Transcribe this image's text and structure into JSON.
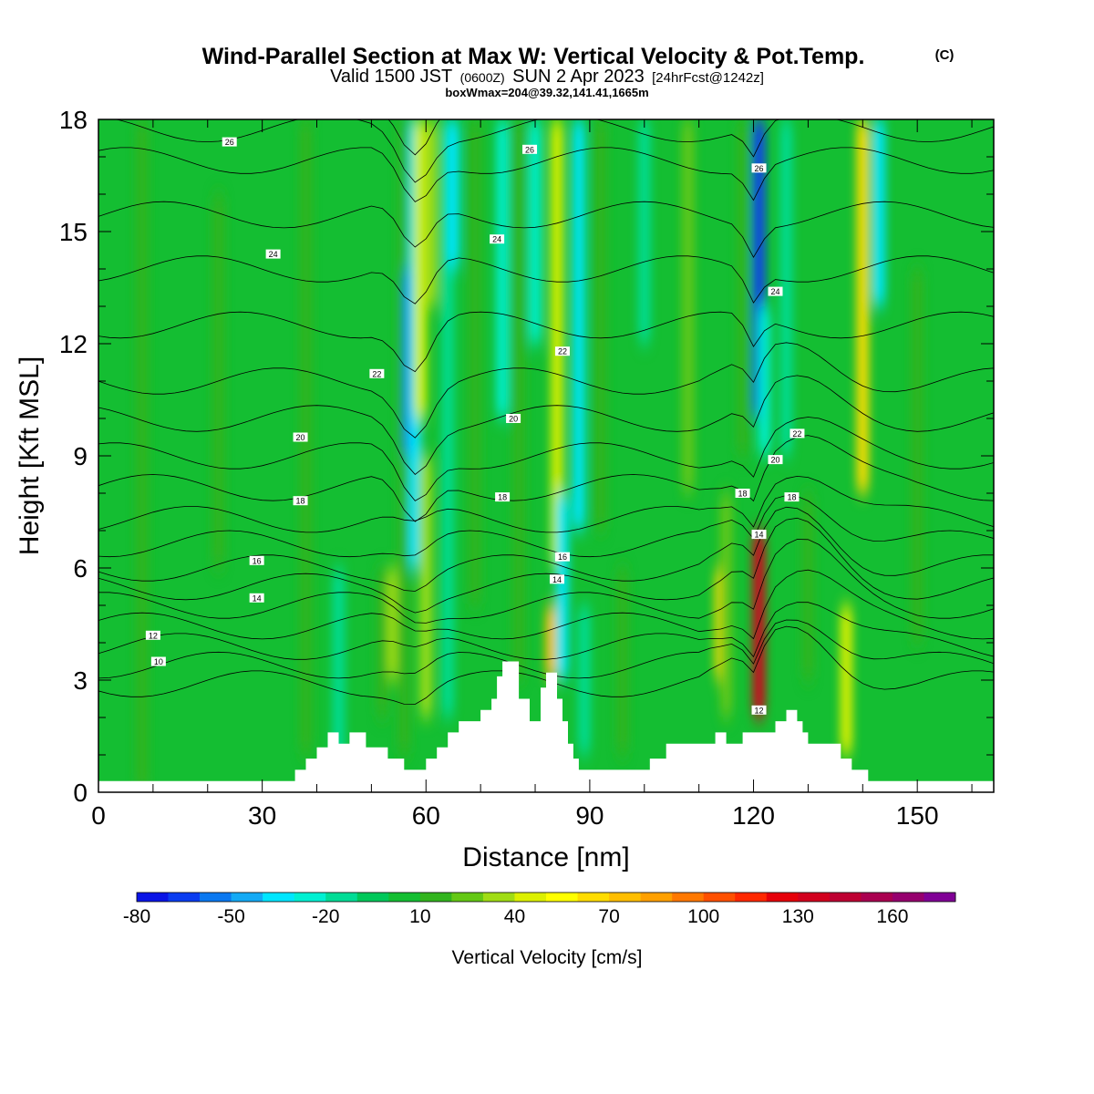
{
  "header": {
    "title": "Wind-Parallel Section at Max W: Vertical Velocity & Pot.Temp.",
    "copyright": "(C)",
    "valid_prefix": "Valid 1500 JST",
    "valid_utc": "(0600Z)",
    "valid_date": "SUN 2 Apr 2023",
    "forecast": "[24hrFcst@1242z]",
    "boxwmax": "boxWmax=204@39.32,141.41,1665m"
  },
  "chart_data": {
    "type": "heatmap",
    "xlabel": "Distance [nm]",
    "ylabel": "Height [Kft MSL]",
    "xlim": [
      0,
      164
    ],
    "ylim": [
      0,
      18
    ],
    "x_ticks": [
      0,
      30,
      60,
      90,
      120,
      150
    ],
    "x_tick_labels": [
      "0",
      "30",
      "60",
      "90",
      "120",
      "150"
    ],
    "y_ticks": [
      0,
      3,
      6,
      9,
      12,
      15,
      18
    ],
    "y_tick_labels": [
      "0",
      "3",
      "6",
      "9",
      "12",
      "15",
      "18"
    ],
    "background_value": 0,
    "bands": [
      {
        "x": 8,
        "y0": 0,
        "y1": 18,
        "value": 10
      },
      {
        "x": 22,
        "y0": 6,
        "y1": 16,
        "value": 10
      },
      {
        "x": 38,
        "y0": 1,
        "y1": 18,
        "value": 10
      },
      {
        "x": 44,
        "y0": 0,
        "y1": 6,
        "value": -15
      },
      {
        "x": 52,
        "y0": 2,
        "y1": 6,
        "value": 10
      },
      {
        "x": 54,
        "y0": 3,
        "y1": 6,
        "value": 35
      },
      {
        "x": 56,
        "y0": 1,
        "y1": 18,
        "value": 10
      },
      {
        "x": 57,
        "y0": 9,
        "y1": 14,
        "value": -60
      },
      {
        "x": 58,
        "y0": 6,
        "y1": 18,
        "value": -40
      },
      {
        "x": 59,
        "y0": 10,
        "y1": 18,
        "value": 40
      },
      {
        "x": 60,
        "y0": 2,
        "y1": 9,
        "value": 30
      },
      {
        "x": 61,
        "y0": 13,
        "y1": 18,
        "value": 30
      },
      {
        "x": 64,
        "y0": 2,
        "y1": 18,
        "value": -20
      },
      {
        "x": 65,
        "y0": 14,
        "y1": 18,
        "value": -40
      },
      {
        "x": 69,
        "y0": 5,
        "y1": 18,
        "value": 10
      },
      {
        "x": 74,
        "y0": 10,
        "y1": 18,
        "value": -30
      },
      {
        "x": 77,
        "y0": 3,
        "y1": 18,
        "value": 10
      },
      {
        "x": 80,
        "y0": 12,
        "y1": 18,
        "value": -30
      },
      {
        "x": 83,
        "y0": 3,
        "y1": 5,
        "value": 70
      },
      {
        "x": 84,
        "y0": 6,
        "y1": 18,
        "value": 40
      },
      {
        "x": 85,
        "y0": 3,
        "y1": 8,
        "value": -35
      },
      {
        "x": 88,
        "y0": 7,
        "y1": 18,
        "value": -35
      },
      {
        "x": 89,
        "y0": 1,
        "y1": 5,
        "value": -20
      },
      {
        "x": 92,
        "y0": 7,
        "y1": 18,
        "value": 10
      },
      {
        "x": 96,
        "y0": 1,
        "y1": 6,
        "value": 10
      },
      {
        "x": 100,
        "y0": 12,
        "y1": 18,
        "value": -20
      },
      {
        "x": 108,
        "y0": 8,
        "y1": 18,
        "value": 20
      },
      {
        "x": 114,
        "y0": 3,
        "y1": 6,
        "value": 60
      },
      {
        "x": 115,
        "y0": 2,
        "y1": 8,
        "value": 20
      },
      {
        "x": 118,
        "y0": 9,
        "y1": 18,
        "value": 10
      },
      {
        "x": 121,
        "y0": 10,
        "y1": 18,
        "value": -70
      },
      {
        "x": 121,
        "y0": 2,
        "y1": 7,
        "value": 130
      },
      {
        "x": 122,
        "y0": 9,
        "y1": 13,
        "value": -25
      },
      {
        "x": 126,
        "y0": 9,
        "y1": 18,
        "value": -20
      },
      {
        "x": 130,
        "y0": 3,
        "y1": 8,
        "value": 10
      },
      {
        "x": 137,
        "y0": 1,
        "y1": 5,
        "value": 40
      },
      {
        "x": 140,
        "y0": 8,
        "y1": 18,
        "value": 60
      },
      {
        "x": 143,
        "y0": 13,
        "y1": 18,
        "value": -40
      },
      {
        "x": 150,
        "y0": 4,
        "y1": 14,
        "value": 10
      }
    ],
    "terrain": [
      [
        0,
        0.3
      ],
      [
        36,
        0.3
      ],
      [
        36,
        0.6
      ],
      [
        38,
        0.6
      ],
      [
        38,
        0.9
      ],
      [
        40,
        0.9
      ],
      [
        40,
        1.2
      ],
      [
        42,
        1.2
      ],
      [
        42,
        1.6
      ],
      [
        44,
        1.6
      ],
      [
        44,
        1.3
      ],
      [
        46,
        1.3
      ],
      [
        46,
        1.6
      ],
      [
        49,
        1.6
      ],
      [
        49,
        1.2
      ],
      [
        53,
        1.2
      ],
      [
        53,
        0.9
      ],
      [
        56,
        0.9
      ],
      [
        56,
        0.6
      ],
      [
        60,
        0.6
      ],
      [
        60,
        0.9
      ],
      [
        62,
        0.9
      ],
      [
        62,
        1.2
      ],
      [
        64,
        1.2
      ],
      [
        64,
        1.6
      ],
      [
        66,
        1.6
      ],
      [
        66,
        1.9
      ],
      [
        70,
        1.9
      ],
      [
        70,
        2.2
      ],
      [
        72,
        2.2
      ],
      [
        72,
        2.5
      ],
      [
        73,
        2.5
      ],
      [
        73,
        3.1
      ],
      [
        74,
        3.1
      ],
      [
        74,
        3.5
      ],
      [
        77,
        3.5
      ],
      [
        77,
        2.5
      ],
      [
        79,
        2.5
      ],
      [
        79,
        1.9
      ],
      [
        81,
        1.9
      ],
      [
        81,
        2.8
      ],
      [
        82,
        2.8
      ],
      [
        82,
        3.2
      ],
      [
        84,
        3.2
      ],
      [
        84,
        2.5
      ],
      [
        85,
        2.5
      ],
      [
        85,
        1.9
      ],
      [
        86,
        1.9
      ],
      [
        86,
        1.3
      ],
      [
        87,
        1.3
      ],
      [
        87,
        0.9
      ],
      [
        88,
        0.9
      ],
      [
        88,
        0.6
      ],
      [
        101,
        0.6
      ],
      [
        101,
        0.9
      ],
      [
        104,
        0.9
      ],
      [
        104,
        1.3
      ],
      [
        113,
        1.3
      ],
      [
        113,
        1.6
      ],
      [
        115,
        1.6
      ],
      [
        115,
        1.3
      ],
      [
        118,
        1.3
      ],
      [
        118,
        1.6
      ],
      [
        124,
        1.6
      ],
      [
        124,
        1.9
      ],
      [
        126,
        1.9
      ],
      [
        126,
        2.2
      ],
      [
        128,
        2.2
      ],
      [
        128,
        1.9
      ],
      [
        129,
        1.9
      ],
      [
        129,
        1.6
      ],
      [
        130,
        1.6
      ],
      [
        130,
        1.3
      ],
      [
        136,
        1.3
      ],
      [
        136,
        0.9
      ],
      [
        138,
        0.9
      ],
      [
        138,
        0.6
      ],
      [
        141,
        0.6
      ],
      [
        141,
        0.3
      ],
      [
        164,
        0.3
      ]
    ],
    "theta_contour_levels": [
      10,
      12,
      14,
      16,
      18,
      20,
      22,
      24,
      26,
      28
    ],
    "theta_contour_labels": [
      {
        "text": "26",
        "x": 24,
        "y": 17.4
      },
      {
        "text": "26",
        "x": 79,
        "y": 17.2
      },
      {
        "text": "26",
        "x": 121,
        "y": 16.7
      },
      {
        "text": "24",
        "x": 32,
        "y": 14.4
      },
      {
        "text": "24",
        "x": 73,
        "y": 14.8
      },
      {
        "text": "24",
        "x": 124,
        "y": 13.4
      },
      {
        "text": "22",
        "x": 51,
        "y": 11.2
      },
      {
        "text": "22",
        "x": 85,
        "y": 11.8
      },
      {
        "text": "22",
        "x": 128,
        "y": 9.6
      },
      {
        "text": "20",
        "x": 37,
        "y": 9.5
      },
      {
        "text": "20",
        "x": 76,
        "y": 10.0
      },
      {
        "text": "20",
        "x": 124,
        "y": 8.9
      },
      {
        "text": "18",
        "x": 37,
        "y": 7.8
      },
      {
        "text": "18",
        "x": 74,
        "y": 7.9
      },
      {
        "text": "18",
        "x": 118,
        "y": 8.0
      },
      {
        "text": "18",
        "x": 127,
        "y": 7.9
      },
      {
        "text": "16",
        "x": 29,
        "y": 6.2
      },
      {
        "text": "16",
        "x": 85,
        "y": 6.3
      },
      {
        "text": "14",
        "x": 29,
        "y": 5.2
      },
      {
        "text": "14",
        "x": 84,
        "y": 5.7
      },
      {
        "text": "14",
        "x": 121,
        "y": 6.9
      },
      {
        "text": "12",
        "x": 10,
        "y": 4.2
      },
      {
        "text": "12",
        "x": 121,
        "y": 2.2
      },
      {
        "text": "10",
        "x": 11,
        "y": 3.5
      }
    ],
    "colorbar": {
      "label": "Vertical Velocity [cm/s]",
      "levels": [
        -80,
        -70,
        -60,
        -50,
        -40,
        -30,
        -20,
        -10,
        0,
        10,
        20,
        30,
        40,
        50,
        60,
        70,
        80,
        90,
        100,
        110,
        120,
        130,
        140,
        150,
        160,
        170,
        180
      ],
      "colors": [
        "#0a14e6",
        "#0a3cf0",
        "#0a78f0",
        "#14aaf5",
        "#00e6ff",
        "#00f0d2",
        "#00dc96",
        "#00c85a",
        "#14be32",
        "#32b41e",
        "#64c814",
        "#a0dc14",
        "#dcf000",
        "#ffff00",
        "#ffdc00",
        "#ffbe00",
        "#ffa000",
        "#ff7800",
        "#ff5000",
        "#ff2800",
        "#e6000a",
        "#d2001e",
        "#be0032",
        "#aa0050",
        "#96006e",
        "#800096"
      ],
      "tick_values": [
        -80,
        -50,
        -20,
        10,
        40,
        70,
        100,
        130,
        160
      ],
      "tick_labels": [
        "-80",
        "-50",
        "-20",
        "10",
        "40",
        "70",
        "100",
        "130",
        "160"
      ]
    }
  }
}
